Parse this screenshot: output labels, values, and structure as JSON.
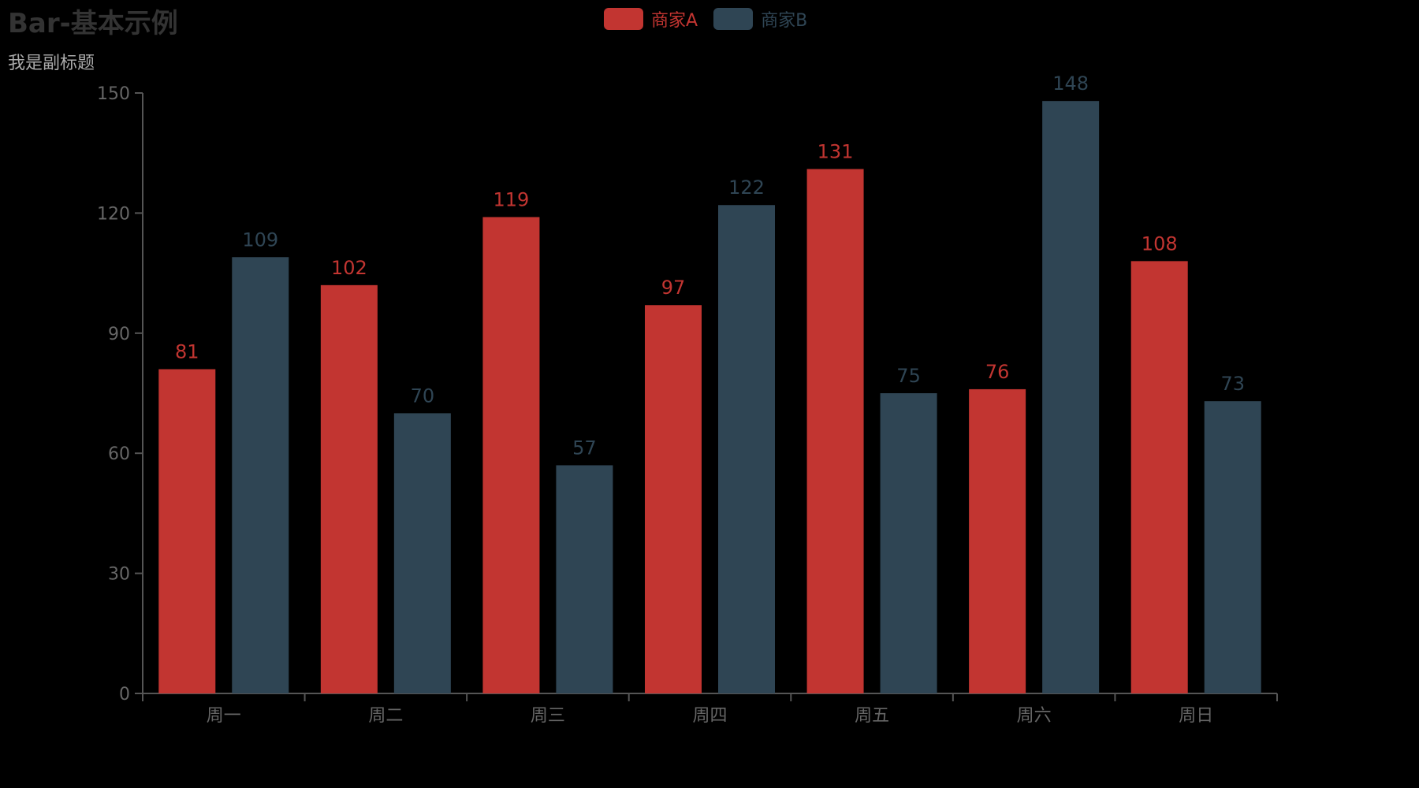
{
  "title": "Bar-基本示例",
  "subtitle": "我是副标题",
  "legend": [
    {
      "label": "商家A",
      "color": "#c23531"
    },
    {
      "label": "商家B",
      "color": "#2f4554"
    }
  ],
  "chart_data": {
    "type": "bar",
    "title": "Bar-基本示例",
    "subtitle": "我是副标题",
    "categories": [
      "周一",
      "周二",
      "周三",
      "周四",
      "周五",
      "周六",
      "周日"
    ],
    "series": [
      {
        "name": "商家A",
        "color": "#c23531",
        "values": [
          81,
          102,
          119,
          97,
          131,
          76,
          108
        ]
      },
      {
        "name": "商家B",
        "color": "#2f4554",
        "values": [
          109,
          70,
          57,
          122,
          75,
          148,
          73
        ]
      }
    ],
    "ylim": [
      0,
      150
    ],
    "yticks": [
      0,
      30,
      60,
      90,
      120,
      150
    ],
    "grid": false,
    "legend_position": "top-center"
  }
}
